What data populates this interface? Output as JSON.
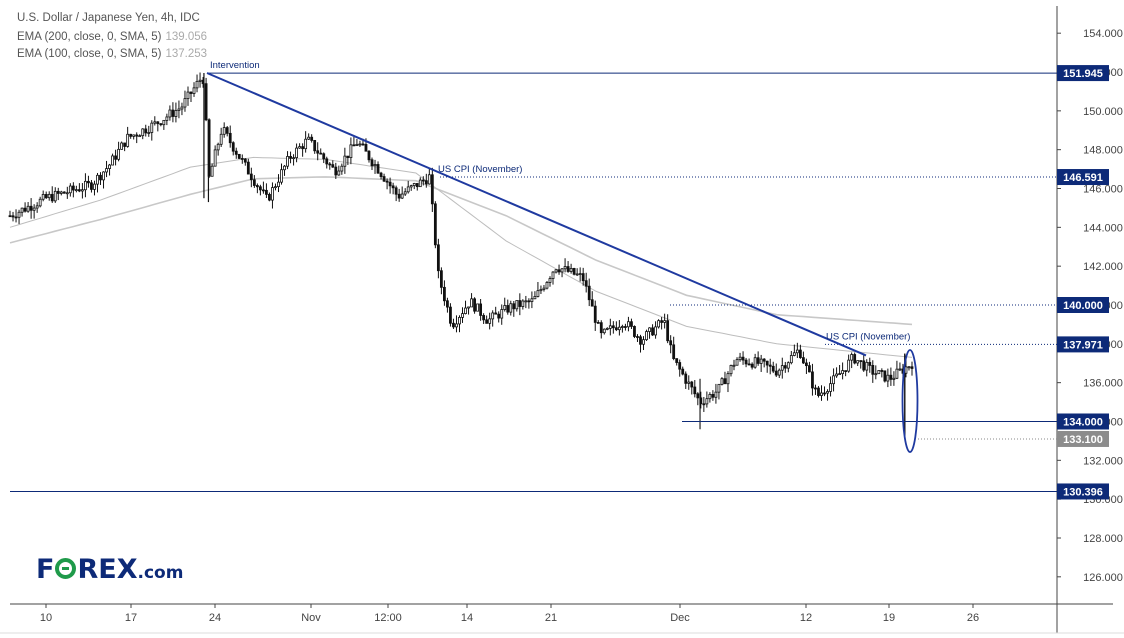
{
  "header": {
    "title": "U.S. Dollar / Japanese Yen, 4h, IDC",
    "ema200_label": "EMA (200, close, 0, SMA, 5)",
    "ema200_value": "139.056",
    "ema100_label": "EMA (100, close, 0, SMA, 5)",
    "ema100_value": "137.253"
  },
  "logo": {
    "text_a": "F",
    "text_b": "REX",
    "text_c": ".com"
  },
  "colors": {
    "trend": "#1f3aa0",
    "level": "#0d2a78",
    "candle": "#111111",
    "ema": "#c8c8c8",
    "ring": "#1f9a4a",
    "price_box": "#8c8c8c"
  },
  "chart_data": {
    "type": "candlestick",
    "ylim": [
      124.6,
      155.4
    ],
    "y_ticks": [
      "154.000",
      "152.000",
      "150.000",
      "148.000",
      "146.000",
      "144.000",
      "142.000",
      "140.000",
      "138.000",
      "136.000",
      "134.000",
      "132.000",
      "130.000",
      "128.000",
      "126.000"
    ],
    "x_ticks": [
      "10",
      "17",
      "24",
      "Nov",
      "12:00",
      "14",
      "21",
      "Dec",
      "12",
      "19",
      "26"
    ],
    "price_labels": [
      {
        "value": 151.945,
        "text": "151.945",
        "style": "level"
      },
      {
        "value": 146.591,
        "text": "146.591",
        "style": "level"
      },
      {
        "value": 140.0,
        "text": "140.000",
        "style": "level"
      },
      {
        "value": 137.971,
        "text": "137.971",
        "style": "level"
      },
      {
        "value": 134.0,
        "text": "134.000",
        "style": "level"
      },
      {
        "value": 133.1,
        "text": "133.100",
        "style": "price"
      },
      {
        "value": 130.396,
        "text": "130.396",
        "style": "level"
      }
    ],
    "annotations": [
      {
        "text": "Intervention",
        "level": 151.945
      },
      {
        "text": "US CPI (November)",
        "level": 146.591
      },
      {
        "text": "US CPI (November)",
        "level": 137.971
      }
    ],
    "trendline": {
      "from": {
        "x": "Oct 21",
        "y": 151.95
      },
      "to": {
        "x": "Dec 16",
        "y": 137.4
      }
    },
    "path_keypoints": [
      [
        0,
        144.6
      ],
      [
        0.04,
        145.5
      ],
      [
        0.09,
        146.2
      ],
      [
        0.11,
        147.2
      ],
      [
        0.13,
        148.6
      ],
      [
        0.16,
        149.3
      ],
      [
        0.19,
        150.2
      ],
      [
        0.215,
        151.9
      ],
      [
        0.22,
        146.4
      ],
      [
        0.235,
        149.1
      ],
      [
        0.26,
        147.2
      ],
      [
        0.285,
        145.4
      ],
      [
        0.31,
        147.6
      ],
      [
        0.33,
        148.5
      ],
      [
        0.36,
        146.9
      ],
      [
        0.385,
        148.4
      ],
      [
        0.41,
        146.9
      ],
      [
        0.43,
        145.6
      ],
      [
        0.465,
        146.6
      ],
      [
        0.475,
        141.5
      ],
      [
        0.49,
        139.0
      ],
      [
        0.51,
        140.2
      ],
      [
        0.53,
        139.2
      ],
      [
        0.555,
        139.9
      ],
      [
        0.58,
        140.2
      ],
      [
        0.605,
        142.0
      ],
      [
        0.635,
        141.4
      ],
      [
        0.655,
        138.4
      ],
      [
        0.68,
        139.2
      ],
      [
        0.7,
        138.2
      ],
      [
        0.725,
        139.2
      ],
      [
        0.735,
        137.2
      ],
      [
        0.765,
        135.0
      ],
      [
        0.785,
        135.6
      ],
      [
        0.805,
        137.2
      ],
      [
        0.83,
        137.0
      ],
      [
        0.85,
        136.6
      ],
      [
        0.875,
        137.7
      ],
      [
        0.895,
        135.3
      ],
      [
        0.915,
        136.2
      ],
      [
        0.935,
        137.3
      ],
      [
        0.955,
        136.6
      ],
      [
        0.975,
        136.2
      ],
      [
        1.0,
        137.0
      ]
    ],
    "ema200": [
      [
        0,
        143.2
      ],
      [
        0.1,
        144.4
      ],
      [
        0.2,
        145.7
      ],
      [
        0.27,
        146.5
      ],
      [
        0.35,
        146.6
      ],
      [
        0.45,
        146.4
      ],
      [
        0.55,
        144.6
      ],
      [
        0.65,
        142.3
      ],
      [
        0.75,
        140.5
      ],
      [
        0.85,
        139.5
      ],
      [
        1.0,
        139.0
      ]
    ],
    "ema100": [
      [
        0,
        144.0
      ],
      [
        0.1,
        145.4
      ],
      [
        0.2,
        147.1
      ],
      [
        0.27,
        147.6
      ],
      [
        0.35,
        147.5
      ],
      [
        0.45,
        146.8
      ],
      [
        0.55,
        143.3
      ],
      [
        0.65,
        140.7
      ],
      [
        0.75,
        138.9
      ],
      [
        0.85,
        138.0
      ],
      [
        1.0,
        137.3
      ]
    ]
  }
}
